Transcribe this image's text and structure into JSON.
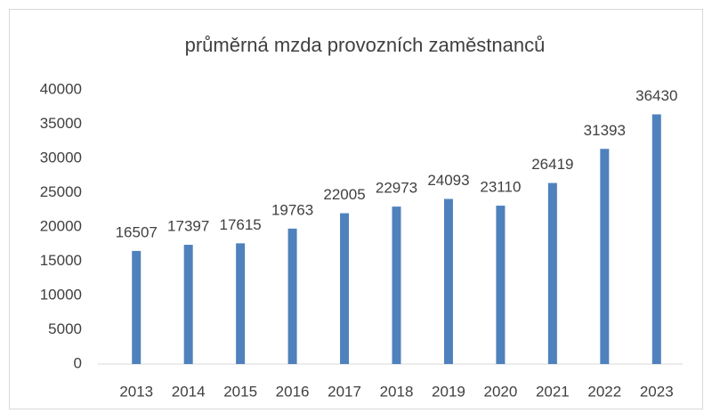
{
  "chart_data": {
    "type": "bar",
    "title": "průměrná mzda provozních zaměstnanců",
    "categories": [
      "2013",
      "2014",
      "2015",
      "2016",
      "2017",
      "2018",
      "2019",
      "2020",
      "2021",
      "2022",
      "2023"
    ],
    "values": [
      16507,
      17397,
      17615,
      19763,
      22005,
      22973,
      24093,
      23110,
      26419,
      31393,
      36430
    ],
    "color": "#4f81bd",
    "ylim": [
      0,
      40000
    ],
    "yticks": [
      0,
      5000,
      10000,
      15000,
      20000,
      25000,
      30000,
      35000,
      40000
    ],
    "grid": false
  }
}
